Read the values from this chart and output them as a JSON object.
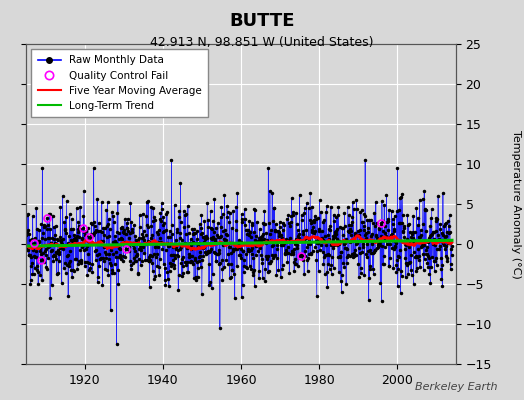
{
  "title": "BUTTE",
  "subtitle": "42.913 N, 98.851 W (United States)",
  "ylabel": "Temperature Anomaly (°C)",
  "watermark": "Berkeley Earth",
  "xlim": [
    1905,
    2015
  ],
  "ylim": [
    -15,
    25
  ],
  "yticks": [
    -15,
    -10,
    -5,
    0,
    5,
    10,
    15,
    20,
    25
  ],
  "xticks": [
    1920,
    1940,
    1960,
    1980,
    2000
  ],
  "raw_color": "#0000ff",
  "marker_color": "#000000",
  "qc_color": "#ff00ff",
  "moving_avg_color": "#ff0000",
  "trend_color": "#00bb00",
  "fig_bg_color": "#d8d8d8",
  "ax_bg_color": "#d8d8d8",
  "grid_color": "#ffffff",
  "seed": 42,
  "n_points": 1320,
  "start_year": 1905.0,
  "end_year": 2014.0
}
